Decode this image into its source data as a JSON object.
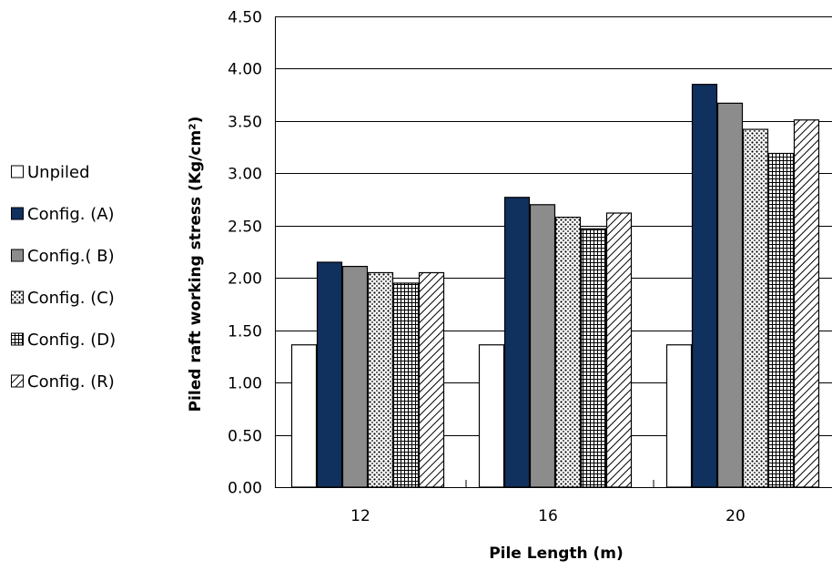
{
  "chart_data": {
    "type": "bar",
    "title": "",
    "xlabel": "Pile  Length (m)",
    "ylabel": "Piled raft working stress (Kg/cm²)",
    "categories": [
      "12",
      "16",
      "20"
    ],
    "ylim": [
      0,
      4.5
    ],
    "yticks": [
      "0.00",
      "0.50",
      "1.00",
      "1.50",
      "2.00",
      "2.50",
      "3.00",
      "3.50",
      "4.00",
      "4.50"
    ],
    "grid": true,
    "legend_position": "left",
    "series": [
      {
        "name": "Unpiled",
        "values": [
          1.36,
          1.36,
          1.36
        ],
        "pattern": "none",
        "color": "#ffffff"
      },
      {
        "name": "Config. (A)",
        "values": [
          2.15,
          2.77,
          3.85
        ],
        "pattern": "solid",
        "color": "#10305e"
      },
      {
        "name": "Config.( B)",
        "values": [
          2.11,
          2.7,
          3.67
        ],
        "pattern": "solid",
        "color": "#8c8c8c"
      },
      {
        "name": "Config. (C)",
        "values": [
          2.05,
          2.58,
          3.42
        ],
        "pattern": "dots",
        "color": "#000000"
      },
      {
        "name": "Config. (D)",
        "values": [
          1.95,
          2.47,
          3.19
        ],
        "pattern": "grid",
        "color": "#000000"
      },
      {
        "name": "Config. (R)",
        "values": [
          2.05,
          2.62,
          3.51
        ],
        "pattern": "diagonal",
        "color": "#000000"
      }
    ]
  }
}
